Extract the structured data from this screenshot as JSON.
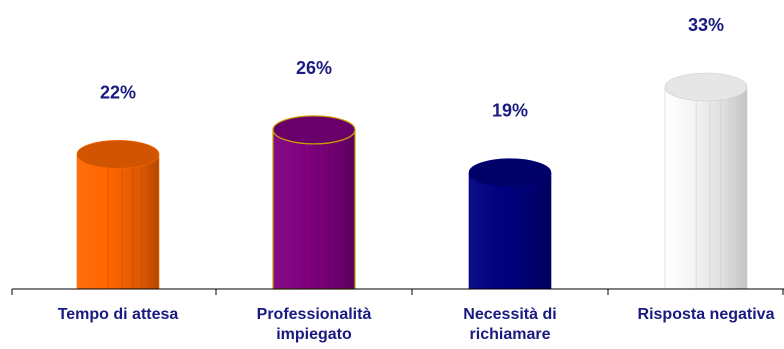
{
  "chart_data": {
    "type": "bar",
    "categories": [
      [
        "Tempo di attesa"
      ],
      [
        "Professionalità",
        "impiegato"
      ],
      [
        "Necessità di",
        "richiamare"
      ],
      [
        "Risposta negativa"
      ]
    ],
    "values": [
      22,
      26,
      19,
      33
    ],
    "data_labels": [
      "22%",
      "26%",
      "19%",
      "33%"
    ],
    "title": "",
    "xlabel": "",
    "ylabel": "",
    "ylim": [
      0,
      35
    ],
    "grid": false,
    "legend": "none",
    "colors": [
      "#ff6600",
      "#800080",
      "#000080",
      "#e8e8e8"
    ],
    "edge_colors": [
      "#ff6600",
      "#c8a000",
      "#000080",
      "#cccccc"
    ],
    "label_color": "#1a1a80",
    "axis_color": "#000000"
  }
}
